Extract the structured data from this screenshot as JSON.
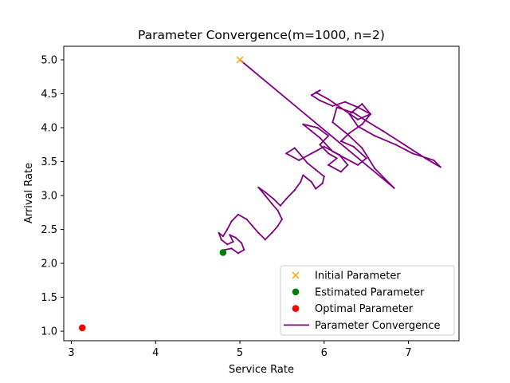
{
  "chart_data": {
    "type": "scatter",
    "title": "Parameter Convergence(m=1000, n=2)",
    "xlabel": "Service Rate",
    "ylabel": "Arrival Rate",
    "xlim": [
      2.91,
      7.6
    ],
    "ylim": [
      0.86,
      5.2
    ],
    "xticks": [
      3,
      4,
      5,
      6,
      7
    ],
    "yticks": [
      1.0,
      1.5,
      2.0,
      2.5,
      3.0,
      3.5,
      4.0,
      4.5,
      5.0
    ],
    "grid": false,
    "legend_position": "lower right",
    "series": [
      {
        "name": "Initial Parameter",
        "kind": "scatter",
        "marker": "x",
        "color": "#ffa500",
        "points": [
          [
            5.0,
            5.0
          ]
        ]
      },
      {
        "name": "Estimated Parameter",
        "kind": "scatter",
        "marker": "o",
        "color": "#008000",
        "points": [
          [
            4.8,
            2.16
          ]
        ]
      },
      {
        "name": "Optimal Parameter",
        "kind": "scatter",
        "marker": "o",
        "color": "#ff0000",
        "points": [
          [
            3.13,
            1.05
          ]
        ]
      },
      {
        "name": "Parameter Convergence",
        "kind": "line",
        "color": "#800080",
        "points": [
          [
            5.0,
            5.0
          ],
          [
            6.83,
            3.11
          ],
          [
            6.6,
            3.4
          ],
          [
            6.45,
            3.7
          ],
          [
            6.28,
            3.9
          ],
          [
            6.1,
            4.08
          ],
          [
            6.15,
            4.3
          ],
          [
            6.35,
            4.22
          ],
          [
            6.5,
            4.1
          ],
          [
            6.7,
            3.95
          ],
          [
            6.95,
            3.75
          ],
          [
            7.2,
            3.55
          ],
          [
            7.38,
            3.42
          ],
          [
            7.3,
            3.52
          ],
          [
            7.05,
            3.62
          ],
          [
            6.85,
            3.75
          ],
          [
            6.6,
            3.88
          ],
          [
            6.4,
            4.02
          ],
          [
            6.3,
            4.2
          ],
          [
            6.45,
            4.35
          ],
          [
            6.55,
            4.2
          ],
          [
            6.4,
            4.12
          ],
          [
            6.25,
            4.25
          ],
          [
            6.05,
            4.42
          ],
          [
            5.9,
            4.52
          ],
          [
            5.95,
            4.55
          ],
          [
            5.85,
            4.48
          ],
          [
            5.95,
            4.4
          ],
          [
            6.1,
            4.32
          ],
          [
            6.25,
            4.38
          ],
          [
            6.4,
            4.3
          ],
          [
            6.55,
            4.2
          ],
          [
            6.45,
            4.05
          ],
          [
            6.3,
            3.92
          ],
          [
            6.2,
            3.8
          ],
          [
            6.35,
            3.72
          ],
          [
            6.5,
            3.55
          ],
          [
            6.4,
            3.45
          ],
          [
            6.25,
            3.55
          ],
          [
            6.1,
            3.65
          ],
          [
            5.95,
            3.85
          ],
          [
            5.85,
            3.95
          ],
          [
            5.75,
            4.05
          ],
          [
            5.92,
            4.0
          ],
          [
            6.05,
            3.88
          ],
          [
            5.95,
            3.75
          ],
          [
            6.05,
            3.62
          ],
          [
            6.15,
            3.55
          ],
          [
            6.05,
            3.45
          ],
          [
            6.2,
            3.35
          ],
          [
            6.28,
            3.45
          ],
          [
            6.18,
            3.6
          ],
          [
            6.0,
            3.72
          ],
          [
            5.85,
            3.62
          ],
          [
            5.7,
            3.52
          ],
          [
            5.55,
            3.62
          ],
          [
            5.65,
            3.7
          ],
          [
            5.72,
            3.6
          ],
          [
            5.8,
            3.48
          ],
          [
            5.9,
            3.38
          ],
          [
            6.0,
            3.28
          ],
          [
            5.98,
            3.18
          ],
          [
            5.9,
            3.1
          ],
          [
            5.85,
            3.2
          ],
          [
            5.75,
            3.3
          ],
          [
            5.72,
            3.2
          ],
          [
            5.65,
            3.08
          ],
          [
            5.55,
            2.95
          ],
          [
            5.48,
            2.85
          ],
          [
            5.4,
            2.95
          ],
          [
            5.3,
            3.05
          ],
          [
            5.22,
            3.12
          ],
          [
            5.3,
            3.0
          ],
          [
            5.38,
            2.88
          ],
          [
            5.45,
            2.78
          ],
          [
            5.5,
            2.65
          ],
          [
            5.45,
            2.55
          ],
          [
            5.38,
            2.45
          ],
          [
            5.3,
            2.35
          ],
          [
            5.22,
            2.45
          ],
          [
            5.15,
            2.55
          ],
          [
            5.08,
            2.65
          ],
          [
            4.98,
            2.72
          ],
          [
            4.9,
            2.62
          ],
          [
            4.85,
            2.5
          ],
          [
            4.8,
            2.4
          ],
          [
            4.75,
            2.45
          ],
          [
            4.78,
            2.35
          ],
          [
            4.85,
            2.28
          ],
          [
            4.92,
            2.32
          ],
          [
            4.88,
            2.42
          ],
          [
            4.95,
            2.38
          ],
          [
            5.02,
            2.3
          ],
          [
            5.05,
            2.2
          ],
          [
            4.98,
            2.15
          ],
          [
            4.9,
            2.22
          ],
          [
            4.82,
            2.2
          ],
          [
            4.8,
            2.16
          ]
        ]
      }
    ]
  }
}
